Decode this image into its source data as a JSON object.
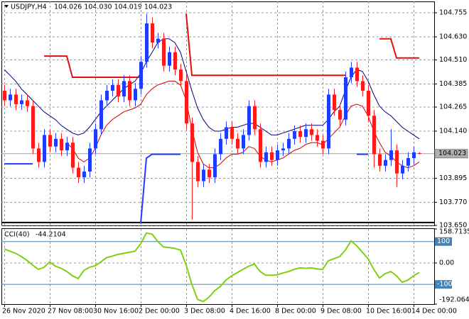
{
  "chart_data": [
    {
      "type": "candlestick",
      "title": "USDJPY,H4",
      "ohlc_text": "104.026 104.030 104.019 104.023",
      "categories": [
        "26 Nov 2020",
        null,
        null,
        null,
        null,
        null,
        null,
        null,
        "27 Nov 08:00",
        null,
        null,
        null,
        null,
        null,
        null,
        null,
        "30 Nov 16:00",
        null,
        null,
        null,
        null,
        null,
        null,
        null,
        "2 Dec 00:00",
        null,
        null,
        null,
        null,
        null,
        null,
        null,
        "3 Dec 08:00",
        null,
        null,
        null,
        null,
        null,
        null,
        null,
        "4 Dec 16:00",
        null,
        null,
        null,
        null,
        null,
        null,
        null,
        "8 Dec 00:00",
        null,
        null,
        null,
        null,
        null,
        null,
        null,
        "9 Dec 08:00",
        null,
        null,
        null,
        null,
        null,
        null,
        null,
        "10 Dec 16:00",
        null,
        null,
        null,
        null,
        null,
        null,
        null,
        "14 Dec 00:00",
        null
      ],
      "open": [
        104.35,
        104.3,
        104.33,
        104.28,
        104.3,
        104.27,
        104.05,
        103.98,
        104.12,
        104.06,
        104.1,
        104.04,
        104.08,
        103.95,
        103.9,
        103.93,
        104.05,
        104.15,
        104.3,
        104.35,
        104.38,
        104.32,
        104.4,
        104.3,
        104.36,
        104.5,
        104.7,
        104.6,
        104.62,
        104.48,
        104.55,
        104.46,
        104.4,
        104.18,
        103.98,
        103.88,
        103.94,
        103.9,
        104.02,
        104.1,
        104.16,
        104.1,
        104.05,
        104.12,
        104.27,
        104.15,
        103.98,
        104.03,
        103.99,
        104.04,
        104.05,
        104.1,
        104.14,
        104.11,
        104.15,
        104.12,
        104.09,
        104.05,
        104.33,
        104.25,
        104.2,
        104.42,
        104.47,
        104.4,
        104.35,
        104.22,
        104.02,
        103.96,
        103.99,
        104.04,
        103.92,
        103.96,
        104.0,
        104.026
      ],
      "high": [
        104.38,
        104.36,
        104.36,
        104.33,
        104.33,
        104.3,
        104.08,
        104.15,
        104.15,
        104.13,
        104.13,
        104.11,
        104.11,
        103.98,
        103.96,
        104.08,
        104.18,
        104.33,
        104.38,
        104.41,
        104.41,
        104.43,
        104.43,
        104.39,
        104.53,
        104.75,
        104.73,
        104.65,
        104.65,
        104.58,
        104.58,
        104.49,
        104.43,
        104.21,
        104.01,
        103.97,
        103.97,
        104.05,
        104.13,
        104.19,
        104.19,
        104.13,
        104.15,
        104.3,
        104.3,
        104.18,
        104.06,
        104.06,
        104.07,
        104.08,
        104.13,
        104.17,
        104.17,
        104.18,
        104.18,
        104.15,
        104.12,
        104.36,
        104.36,
        104.28,
        104.45,
        104.5,
        104.5,
        104.43,
        104.38,
        104.25,
        104.05,
        104.02,
        104.15,
        104.07,
        103.99,
        104.03,
        104.06,
        104.03
      ],
      "low": [
        104.27,
        104.27,
        104.25,
        104.25,
        104.24,
        104.02,
        103.95,
        103.95,
        104.03,
        104.03,
        104.01,
        104.01,
        103.92,
        103.87,
        103.87,
        103.9,
        104.02,
        104.12,
        104.27,
        104.32,
        104.29,
        104.29,
        104.27,
        104.27,
        104.33,
        104.47,
        104.57,
        104.57,
        104.45,
        104.45,
        104.43,
        104.37,
        104.15,
        103.68,
        103.85,
        103.85,
        103.87,
        103.87,
        103.99,
        104.07,
        104.07,
        104.02,
        104.02,
        104.09,
        104.12,
        103.95,
        103.95,
        103.96,
        103.96,
        104.01,
        104.02,
        104.07,
        104.08,
        104.08,
        104.09,
        104.06,
        104.02,
        104.02,
        104.22,
        104.17,
        104.17,
        104.39,
        104.37,
        104.32,
        104.19,
        103.95,
        103.93,
        103.93,
        103.96,
        103.85,
        103.89,
        103.93,
        103.97,
        104.019
      ],
      "close": [
        104.3,
        104.33,
        104.28,
        104.3,
        104.27,
        104.05,
        103.98,
        104.12,
        104.06,
        104.1,
        104.04,
        104.08,
        103.95,
        103.9,
        103.93,
        104.05,
        104.15,
        104.3,
        104.35,
        104.38,
        104.32,
        104.4,
        104.3,
        104.36,
        104.5,
        104.7,
        104.6,
        104.62,
        104.48,
        104.55,
        104.46,
        104.4,
        104.18,
        103.98,
        103.88,
        103.94,
        103.9,
        104.02,
        104.1,
        104.16,
        104.1,
        104.05,
        104.12,
        104.27,
        104.15,
        103.98,
        104.03,
        103.99,
        104.04,
        104.05,
        104.1,
        104.14,
        104.11,
        104.15,
        104.12,
        104.09,
        104.05,
        104.33,
        104.25,
        104.2,
        104.42,
        104.47,
        104.4,
        104.35,
        104.22,
        104.02,
        103.96,
        103.99,
        104.04,
        103.92,
        103.96,
        104.0,
        104.03,
        104.023
      ],
      "up_color": "#1e3cff",
      "down_color": "#ff1a1a",
      "series": [
        {
          "color": "#000080",
          "line_width": 1,
          "values": [
            104.46,
            104.43,
            104.4,
            104.36,
            104.33,
            104.3,
            104.27,
            104.24,
            104.22,
            104.2,
            104.17,
            104.15,
            104.13,
            104.12,
            104.13,
            104.16,
            104.2,
            104.24,
            104.27,
            104.3,
            104.33,
            104.36,
            104.38,
            104.4,
            104.44,
            104.5,
            104.55,
            104.6,
            104.62,
            104.62,
            104.6,
            104.55,
            104.45,
            104.35,
            104.26,
            104.2,
            104.16,
            104.14,
            104.14,
            104.15,
            104.16,
            104.16,
            104.17,
            104.18,
            104.18,
            104.16,
            104.14,
            104.12,
            104.12,
            104.13,
            104.14,
            104.15,
            104.16,
            104.17,
            104.17,
            104.17,
            104.17,
            104.2,
            104.24,
            104.27,
            104.35,
            104.42,
            104.46,
            104.45,
            104.4,
            104.33,
            104.27,
            104.24,
            104.22,
            104.19,
            104.16,
            104.14,
            104.12,
            104.1
          ]
        },
        {
          "color": "#cc0000",
          "line_width": 1,
          "values": [
            null,
            null,
            null,
            null,
            null,
            null,
            null,
            null,
            null,
            null,
            null,
            104.08,
            104.05,
            104.0,
            103.98,
            104.0,
            104.05,
            104.12,
            104.17,
            104.2,
            104.22,
            104.24,
            104.25,
            104.26,
            104.28,
            104.33,
            104.36,
            104.38,
            104.39,
            104.4,
            104.4,
            104.38,
            104.3,
            104.15,
            104.03,
            103.97,
            103.95,
            103.95,
            103.97,
            104.0,
            104.02,
            104.02,
            104.03,
            104.06,
            104.05,
            104.01,
            103.99,
            103.98,
            103.99,
            104.0,
            104.02,
            104.04,
            104.05,
            104.07,
            104.08,
            104.08,
            104.07,
            104.1,
            104.13,
            104.16,
            104.22,
            104.27,
            104.28,
            104.27,
            104.22,
            104.14,
            104.08,
            104.03,
            104.01,
            103.98,
            103.96,
            103.95,
            103.96,
            103.98
          ]
        },
        {
          "color": "#e01010",
          "line_width": 2,
          "values": [
            null,
            null,
            null,
            null,
            null,
            null,
            null,
            104.53,
            104.53,
            104.53,
            104.53,
            104.53,
            104.42,
            104.42,
            104.42,
            104.42,
            104.42,
            104.42,
            104.42,
            104.42,
            104.42,
            104.42,
            104.42,
            104.42,
            104.42,
            null,
            null,
            null,
            null,
            null,
            null,
            null,
            104.75,
            104.43,
            104.43,
            104.43,
            104.43,
            104.43,
            104.43,
            104.43,
            104.43,
            104.43,
            104.43,
            104.43,
            104.43,
            104.43,
            104.43,
            104.43,
            104.43,
            104.43,
            104.43,
            104.43,
            104.43,
            104.43,
            104.43,
            104.43,
            104.43,
            104.43,
            104.43,
            104.43,
            104.43,
            null,
            null,
            null,
            null,
            null,
            104.62,
            104.62,
            104.62,
            104.52,
            104.52,
            104.52,
            104.52,
            104.52
          ]
        },
        {
          "color": "#1e3cff",
          "line_width": 2,
          "values": [
            103.97,
            103.97,
            103.97,
            103.97,
            103.97,
            103.97,
            null,
            null,
            null,
            null,
            null,
            null,
            null,
            null,
            null,
            null,
            null,
            null,
            null,
            null,
            null,
            null,
            null,
            null,
            103.66,
            104.0,
            104.02,
            104.02,
            104.02,
            104.02,
            104.02,
            104.02,
            null,
            null,
            null,
            null,
            null,
            null,
            null,
            null,
            null,
            null,
            null,
            null,
            null,
            null,
            null,
            null,
            null,
            null,
            null,
            null,
            null,
            null,
            null,
            null,
            null,
            null,
            null,
            null,
            null,
            null,
            104.02,
            104.02,
            104.02,
            null,
            null,
            null,
            null,
            null,
            null,
            null,
            null,
            null
          ]
        }
      ],
      "hlines": [
        {
          "value": 103.665,
          "color": "#000000"
        }
      ],
      "last_price": 104.023,
      "ylim": [
        103.65,
        104.814
      ],
      "yticks": [
        104.755,
        {
          "value": 104.63,
          "label": "104.630"
        },
        {
          "value": 104.51,
          "label": "104.510"
        },
        104.385,
        104.265,
        {
          "value": 104.14,
          "label": "104.140"
        },
        103.895,
        {
          "value": 103.77,
          "label": "103.770"
        },
        {
          "value": 103.65,
          "label": "103.650"
        }
      ],
      "grid": true
    },
    {
      "type": "line",
      "title": "CCI(40)",
      "last_value": -44.2104,
      "color": "#80d010",
      "values": [
        65,
        55,
        45,
        30,
        12,
        -10,
        -30,
        -20,
        5,
        -15,
        -25,
        -40,
        -60,
        -73,
        -35,
        -20,
        -13,
        5,
        25,
        32,
        40,
        45,
        50,
        55,
        90,
        140,
        135,
        100,
        75,
        72,
        68,
        60,
        -10,
        -100,
        -170,
        -180,
        -160,
        -130,
        -110,
        -80,
        -60,
        -45,
        -30,
        -15,
        -5,
        -40,
        -57,
        -57,
        -55,
        -47,
        -40,
        -30,
        -23,
        -25,
        -23,
        -28,
        -30,
        10,
        20,
        30,
        60,
        103,
        80,
        50,
        20,
        -30,
        -70,
        -50,
        -40,
        -60,
        -90,
        -80,
        -60,
        -44.2104
      ],
      "ylim": [
        -192.0645,
        158.7135
      ],
      "yticks": [
        158.7135,
        {
          "value": 0,
          "label": "0.00"
        },
        -192.0645
      ],
      "levels": [
        100,
        -100
      ],
      "level_color": "#4682b4"
    }
  ]
}
